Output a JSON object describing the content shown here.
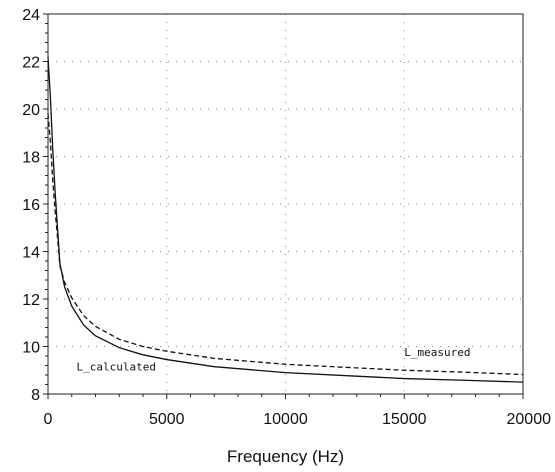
{
  "chart_data": {
    "type": "line",
    "title": "",
    "xlabel": "Frequency (Hz)",
    "ylabel": "",
    "xlim": [
      0,
      20000
    ],
    "ylim": [
      8,
      24
    ],
    "xticks": [
      0,
      5000,
      10000,
      15000,
      20000
    ],
    "yticks": [
      8,
      10,
      12,
      14,
      16,
      18,
      20,
      22,
      24
    ],
    "grid": true,
    "series": [
      {
        "name": "L_calculated",
        "style": "solid",
        "color": "#111111",
        "x": [
          0,
          100,
          200,
          300,
          400,
          500,
          700,
          1000,
          1500,
          2000,
          3000,
          4000,
          5000,
          7000,
          10000,
          13000,
          15000,
          17500,
          20000
        ],
        "y": [
          22.2,
          20.5,
          18.3,
          16.5,
          15.0,
          13.5,
          12.5,
          11.7,
          10.9,
          10.45,
          9.95,
          9.65,
          9.45,
          9.15,
          8.9,
          8.75,
          8.65,
          8.58,
          8.5
        ]
      },
      {
        "name": "L_measured",
        "style": "dashed",
        "color": "#111111",
        "x": [
          0,
          100,
          200,
          300,
          400,
          500,
          700,
          1000,
          1500,
          2000,
          3000,
          4000,
          5000,
          7000,
          10000,
          13000,
          15000,
          17500,
          20000
        ],
        "y": [
          19.8,
          18.6,
          17.0,
          15.7,
          14.6,
          13.4,
          12.7,
          12.05,
          11.3,
          10.85,
          10.3,
          10.0,
          9.8,
          9.5,
          9.25,
          9.1,
          9.0,
          8.92,
          8.82
        ]
      }
    ],
    "annotations": [
      {
        "text": "L_calculated",
        "x": 1200,
        "y": 9.0
      },
      {
        "text": "L_measured",
        "x": 15000,
        "y": 9.6
      }
    ]
  }
}
